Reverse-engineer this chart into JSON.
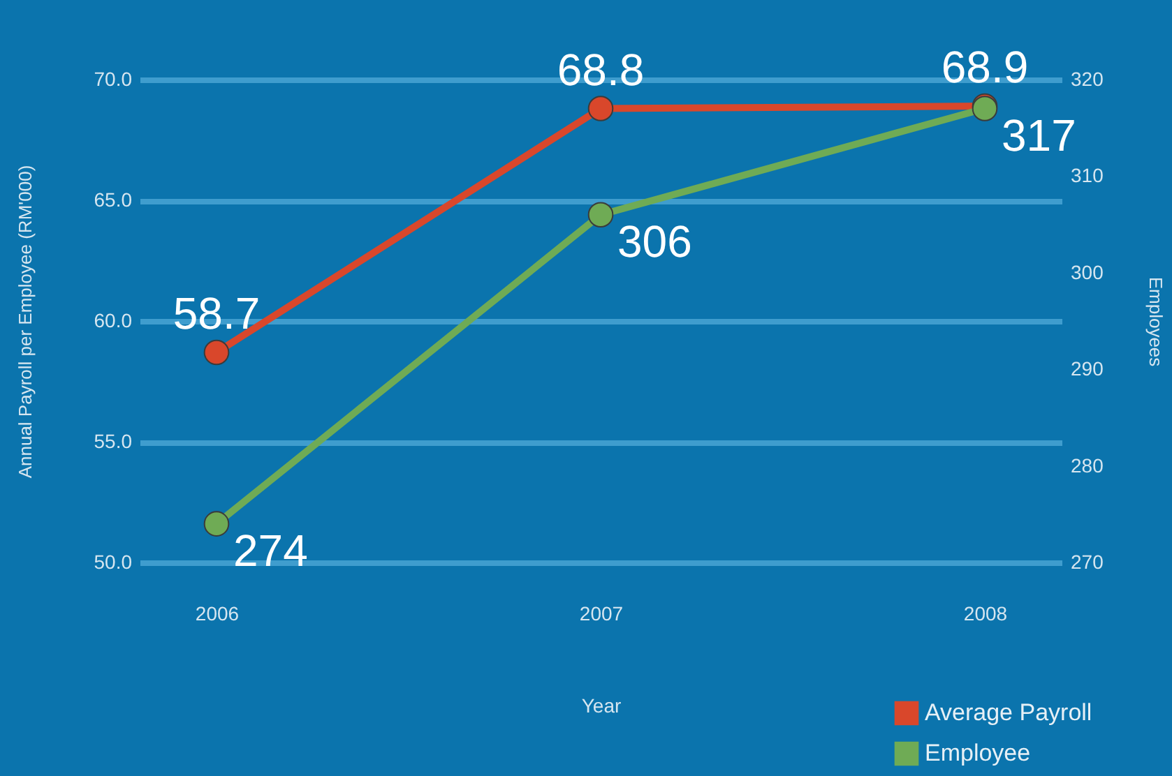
{
  "chart_data": {
    "type": "line",
    "categories": [
      "2006",
      "2007",
      "2008"
    ],
    "xlabel": "Year",
    "ylabel": "Annual Payroll per Employee (RM'000)",
    "y2label": "Employees",
    "series": [
      {
        "name": "Average Payroll",
        "color": "#d9472b",
        "values": [
          58.7,
          68.8,
          68.9
        ]
      },
      {
        "name": "Employee",
        "color": "#6fab55",
        "values": [
          274,
          306,
          317
        ],
        "axis": "y2"
      }
    ],
    "ylim": [
      50,
      70
    ],
    "yticks": [
      {
        "value": 50,
        "label": "50.0"
      },
      {
        "value": 55,
        "label": "55.0"
      },
      {
        "value": 60,
        "label": "60.0"
      },
      {
        "value": 65,
        "label": "65.0"
      },
      {
        "value": 70,
        "label": "70.0"
      }
    ],
    "y2lim": [
      270,
      320
    ],
    "y2ticks": [
      270,
      280,
      290,
      300,
      310,
      320
    ],
    "data_labels": true,
    "grid": "y",
    "legend": "bottom right",
    "marker": "circle",
    "line_style": "solid"
  }
}
